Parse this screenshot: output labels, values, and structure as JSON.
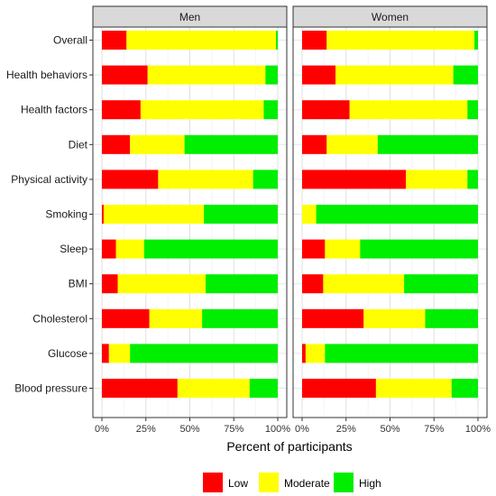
{
  "chart_data": {
    "type": "bar",
    "orientation": "horizontal",
    "stacked": true,
    "facets": [
      "Men",
      "Women"
    ],
    "categories": [
      "Overall",
      "Health behaviors",
      "Health factors",
      "Diet",
      "Physical activity",
      "Smoking",
      "Sleep",
      "BMI",
      "Cholesterol",
      "Glucose",
      "Blood pressure"
    ],
    "series": [
      {
        "name": "Low",
        "color": "#ff0000"
      },
      {
        "name": "Moderate",
        "color": "#ffff00"
      },
      {
        "name": "High",
        "color": "#00ee00"
      }
    ],
    "values": {
      "Men": [
        [
          14,
          85,
          1
        ],
        [
          26,
          67,
          7
        ],
        [
          22,
          70,
          8
        ],
        [
          16,
          31,
          53
        ],
        [
          32,
          54,
          14
        ],
        [
          1,
          57,
          42
        ],
        [
          8,
          16,
          76
        ],
        [
          9,
          50,
          41
        ],
        [
          27,
          30,
          43
        ],
        [
          4,
          12,
          84
        ],
        [
          43,
          41,
          16
        ]
      ],
      "Women": [
        [
          14,
          84,
          2
        ],
        [
          19,
          67,
          14
        ],
        [
          27,
          67,
          6
        ],
        [
          14,
          29,
          57
        ],
        [
          59,
          35,
          6
        ],
        [
          0,
          8,
          92
        ],
        [
          13,
          20,
          67
        ],
        [
          12,
          46,
          42
        ],
        [
          35,
          35,
          30
        ],
        [
          2,
          11,
          87
        ],
        [
          42,
          43,
          15
        ]
      ]
    },
    "x_ticks": [
      "0%",
      "25%",
      "50%",
      "75%",
      "100%"
    ],
    "xlim": [
      0,
      100
    ],
    "xlabel": "Percent of participants",
    "ylabel": "",
    "grid": true,
    "legend_position": "bottom"
  }
}
